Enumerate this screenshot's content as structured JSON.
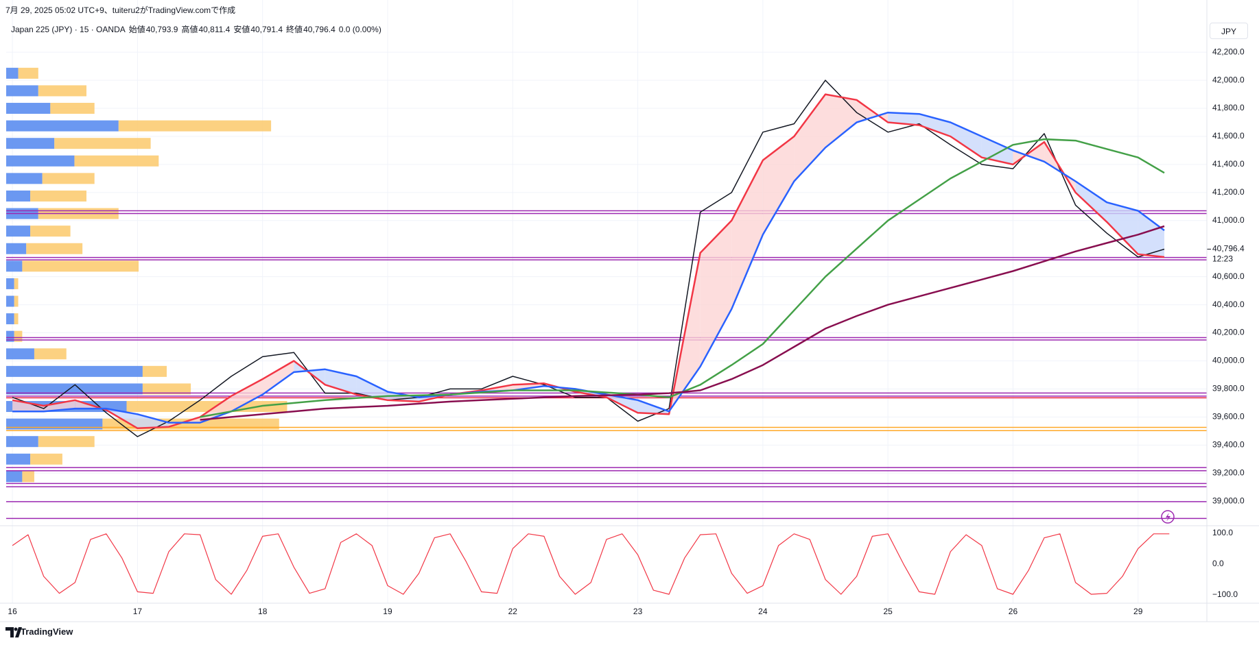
{
  "header": {
    "caption": "7月 29, 2025 05:02 UTC+9、tuiteru2がTradingView.comで作成",
    "symbol": "Japan 225 (JPY) · 15 · OANDA",
    "ohlc": [
      {
        "label": "始値",
        "value": "40,793.9"
      },
      {
        "label": "高値",
        "value": "40,811.4"
      },
      {
        "label": "安値",
        "value": "40,791.4"
      },
      {
        "label": "終値",
        "value": "40,796.4"
      }
    ],
    "change": "0.0 (0.00%)",
    "currency": "JPY"
  },
  "brand": "TradingView",
  "chart_data": [
    {
      "type": "line",
      "x": [
        0,
        0.25,
        0.5,
        0.75,
        1,
        1.25,
        1.5,
        1.75,
        2,
        2.25,
        2.5,
        2.75,
        3,
        3.25,
        3.5,
        3.75,
        4,
        4.25,
        4.5,
        4.75,
        5,
        5.25,
        5.5,
        5.75,
        6,
        6.25,
        6.5,
        6.75,
        7,
        7.25,
        7.5,
        7.75,
        8,
        8.25,
        8.5,
        8.75,
        9,
        9.21
      ],
      "series": [
        {
          "color": "#131722",
          "values": [
            39740,
            39660,
            39830,
            39630,
            39460,
            39570,
            39720,
            39890,
            40030,
            40060,
            39770,
            39770,
            39720,
            39740,
            39800,
            39800,
            39890,
            39830,
            39740,
            39740,
            39570,
            39660,
            41060,
            41200,
            41630,
            41690,
            42000,
            41770,
            41630,
            41690,
            41540,
            41400,
            41370,
            41620,
            41110,
            40910,
            40740,
            40796.4
          ]
        },
        {
          "color": "#f23645",
          "values": [
            39720,
            39680,
            39720,
            39650,
            39520,
            39530,
            39600,
            39750,
            39870,
            40000,
            39830,
            39760,
            39720,
            39710,
            39760,
            39790,
            39830,
            39840,
            39780,
            39740,
            39630,
            39620,
            40770,
            41000,
            41430,
            41600,
            41900,
            41860,
            41700,
            41680,
            41600,
            41450,
            41400,
            41560,
            41200,
            40990,
            40760,
            40740
          ]
        },
        {
          "color": "#2962ff",
          "values": [
            39640,
            39640,
            39660,
            39660,
            39620,
            39560,
            39560,
            39640,
            39760,
            39920,
            39940,
            39890,
            39780,
            39740,
            39760,
            39780,
            39790,
            39820,
            39800,
            39760,
            39720,
            39640,
            39960,
            40370,
            40900,
            41280,
            41520,
            41700,
            41770,
            41760,
            41700,
            41600,
            41500,
            41420,
            41280,
            41130,
            41070,
            40930
          ]
        },
        {
          "color": "#43a047",
          "values": [
            null,
            null,
            null,
            null,
            null,
            null,
            39600,
            39640,
            39680,
            39700,
            39720,
            39735,
            39750,
            39755,
            39760,
            39775,
            39790,
            39790,
            39790,
            39775,
            39760,
            39740,
            39830,
            39970,
            40120,
            40360,
            40600,
            40800,
            41000,
            41150,
            41300,
            41420,
            41540,
            41580,
            41570,
            41510,
            41450,
            41340
          ]
        },
        {
          "color": "#880e4f",
          "values": [
            null,
            null,
            null,
            null,
            null,
            null,
            39580,
            39600,
            39620,
            39640,
            39660,
            39670,
            39680,
            39695,
            39710,
            39720,
            39730,
            39740,
            39750,
            39755,
            39760,
            39770,
            39790,
            39870,
            39970,
            40100,
            40230,
            40320,
            40400,
            40460,
            40520,
            40580,
            40640,
            40710,
            40780,
            40840,
            40900,
            40960
          ]
        }
      ],
      "cloud_colors": [
        "#fcd4d4",
        "#c9d8fb"
      ],
      "xlim": [
        -0.05,
        9.55
      ],
      "xticks": [
        {
          "value": 0,
          "label": "16"
        },
        {
          "value": 1,
          "label": "17"
        },
        {
          "value": 2,
          "label": "18"
        },
        {
          "value": 3,
          "label": "19"
        },
        {
          "value": 4,
          "label": "22"
        },
        {
          "value": 5,
          "label": "23"
        },
        {
          "value": 6,
          "label": "24"
        },
        {
          "value": 7,
          "label": "25"
        },
        {
          "value": 8,
          "label": "26"
        },
        {
          "value": 9,
          "label": "29"
        }
      ],
      "ylim": [
        38830,
        42445
      ],
      "yticks": [
        {
          "value": 42200,
          "label": "42,200.0"
        },
        {
          "value": 42000,
          "label": "42,000.0"
        },
        {
          "value": 41800,
          "label": "41,800.0"
        },
        {
          "value": 41600,
          "label": "41,600.0"
        },
        {
          "value": 41400,
          "label": "41,400.0"
        },
        {
          "value": 41200,
          "label": "41,200.0"
        },
        {
          "value": 41000,
          "label": "41,000.0"
        },
        {
          "value": 40600,
          "label": "40,600.0"
        },
        {
          "value": 40400,
          "label": "40,400.0"
        },
        {
          "value": 40200,
          "label": "40,200.0"
        },
        {
          "value": 40000,
          "label": "40,000.0"
        },
        {
          "value": 39800,
          "label": "39,800.0"
        },
        {
          "value": 39600,
          "label": "39,600.0"
        },
        {
          "value": 39400,
          "label": "39,400.0"
        },
        {
          "value": 39200,
          "label": "39,200.0"
        },
        {
          "value": 39000,
          "label": "39,000.0"
        }
      ],
      "grid": true,
      "last_price": {
        "value": 40796.4,
        "label": "40,796.4",
        "countdown": "12:23"
      },
      "levels": [
        {
          "value": 41070,
          "color": "#9c27b0"
        },
        {
          "value": 41050,
          "color": "#9c27b0"
        },
        {
          "value": 40737,
          "color": "#9c27b0"
        },
        {
          "value": 40720,
          "color": "#9c27b0"
        },
        {
          "value": 40166,
          "color": "#9c27b0"
        },
        {
          "value": 40149,
          "color": "#9c27b0"
        },
        {
          "value": 39771,
          "color": "#9c27b0"
        },
        {
          "value": 39749,
          "color": "#9c27b0"
        },
        {
          "value": 39737,
          "color": "#e91e3c"
        },
        {
          "value": 39526,
          "color": "#ffa726"
        },
        {
          "value": 39503,
          "color": "#ffa726"
        },
        {
          "value": 39240,
          "color": "#9c27b0"
        },
        {
          "value": 39217,
          "color": "#9c27b0"
        },
        {
          "value": 39126,
          "color": "#9c27b0"
        },
        {
          "value": 39103,
          "color": "#9c27b0"
        },
        {
          "value": 38997,
          "color": "#9c27b0"
        },
        {
          "value": 38877,
          "color": "#9c27b0"
        }
      ],
      "volume_profile": {
        "colors": [
          "#5b8def",
          "#fbc96b"
        ],
        "prices": [
          42050,
          41925,
          41800,
          41675,
          41550,
          41425,
          41300,
          41175,
          41050,
          40925,
          40800,
          40675,
          40550,
          40425,
          40300,
          40175,
          40050,
          39925,
          39800,
          39675,
          39550,
          39425,
          39300,
          39175
        ],
        "buy": [
          15,
          40,
          55,
          140,
          60,
          85,
          45,
          30,
          40,
          30,
          25,
          20,
          10,
          10,
          10,
          10,
          35,
          170,
          170,
          150,
          120,
          40,
          30,
          20
        ],
        "sell": [
          25,
          60,
          55,
          190,
          120,
          105,
          65,
          70,
          100,
          50,
          70,
          145,
          5,
          5,
          5,
          10,
          40,
          30,
          60,
          200,
          220,
          70,
          40,
          15
        ]
      }
    },
    {
      "type": "line",
      "x": [
        0,
        0.125,
        0.25,
        0.375,
        0.5,
        0.625,
        0.75,
        0.875,
        1,
        1.125,
        1.25,
        1.375,
        1.5,
        1.625,
        1.75,
        1.875,
        2,
        2.125,
        2.25,
        2.375,
        2.5,
        2.625,
        2.75,
        2.875,
        3,
        3.125,
        3.25,
        3.375,
        3.5,
        3.625,
        3.75,
        3.875,
        4,
        4.125,
        4.25,
        4.375,
        4.5,
        4.625,
        4.75,
        4.875,
        5,
        5.125,
        5.25,
        5.375,
        5.5,
        5.625,
        5.75,
        5.875,
        6,
        6.125,
        6.25,
        6.375,
        6.5,
        6.625,
        6.75,
        6.875,
        7,
        7.125,
        7.25,
        7.375,
        7.5,
        7.625,
        7.75,
        7.875,
        8,
        8.125,
        8.25,
        8.375,
        8.5,
        8.625,
        8.75,
        8.875,
        9,
        9.125,
        9.25
      ],
      "color": "#f23645",
      "values": [
        60,
        95,
        -40,
        -95,
        -60,
        80,
        98,
        20,
        -90,
        -95,
        40,
        98,
        95,
        -50,
        -98,
        -20,
        90,
        98,
        -10,
        -95,
        -80,
        70,
        98,
        60,
        -70,
        -98,
        -30,
        85,
        98,
        10,
        -90,
        -95,
        50,
        98,
        90,
        -40,
        -98,
        -60,
        80,
        98,
        30,
        -85,
        -98,
        20,
        95,
        98,
        -30,
        -95,
        -70,
        60,
        98,
        80,
        -50,
        -98,
        -40,
        90,
        98,
        0,
        -90,
        -98,
        40,
        95,
        60,
        -80,
        -98,
        -20,
        85,
        98,
        -60,
        -98,
        -95,
        -40,
        50,
        98,
        98
      ],
      "xlim": [
        -0.05,
        9.55
      ],
      "ylim": [
        -127,
        122
      ],
      "yticks": [
        {
          "value": 100,
          "label": "100.0"
        },
        {
          "value": 0,
          "label": "0.0"
        },
        {
          "value": -100,
          "label": "−100.0"
        }
      ]
    }
  ]
}
